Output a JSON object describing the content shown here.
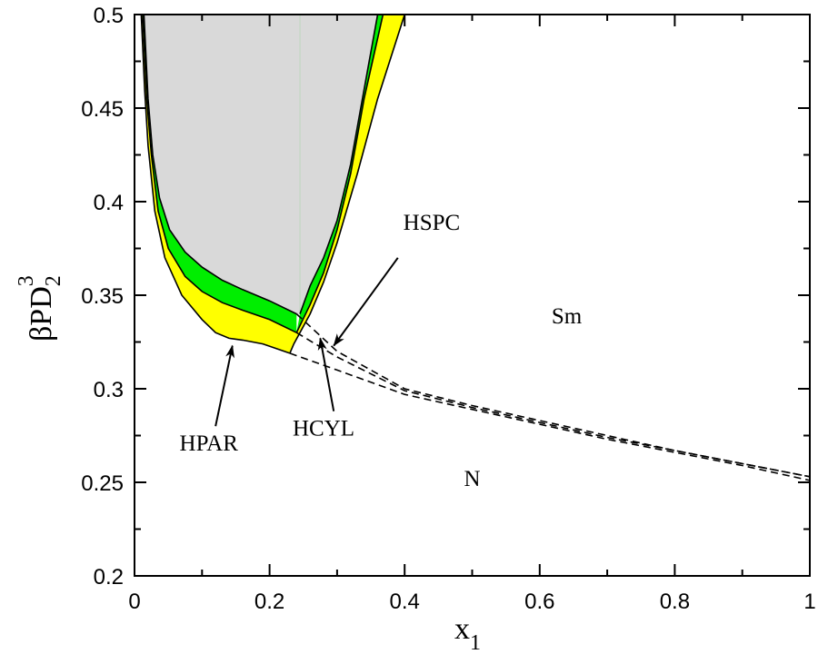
{
  "chart_data": {
    "type": "area",
    "title": "",
    "xlabel": "x",
    "xlabel_sub": "1",
    "ylabel": "βPD",
    "ylabel_sub": "2",
    "ylabel_sup": "3",
    "xlim": [
      0,
      1
    ],
    "ylim": [
      0.2,
      0.5
    ],
    "xticks": [
      0,
      0.2,
      0.4,
      0.6,
      0.8,
      1
    ],
    "xtick_labels": [
      "0",
      "0.2",
      "0.4",
      "0.6",
      "0.8",
      "1"
    ],
    "yticks": [
      0.2,
      0.25,
      0.3,
      0.35,
      0.4,
      0.45,
      0.5
    ],
    "ytick_labels": [
      "0.2",
      "0.25",
      "0.3",
      "0.35",
      "0.4",
      "0.45",
      "0.5"
    ],
    "grid": false,
    "colors": {
      "coexistence": "#d9d9d9",
      "green_band": "#00ee00",
      "yellow_band": "#ffff00",
      "line": "#000000"
    },
    "left_branch": {
      "outer": [
        [
          0.01,
          0.5
        ],
        [
          0.015,
          0.46
        ],
        [
          0.02,
          0.43
        ],
        [
          0.03,
          0.395
        ],
        [
          0.045,
          0.37
        ],
        [
          0.07,
          0.35
        ],
        [
          0.1,
          0.337
        ],
        [
          0.12,
          0.33
        ],
        [
          0.14,
          0.327
        ],
        [
          0.16,
          0.326
        ],
        [
          0.19,
          0.324
        ],
        [
          0.23,
          0.319
        ]
      ],
      "middle": [
        [
          0.012,
          0.5
        ],
        [
          0.018,
          0.455
        ],
        [
          0.025,
          0.425
        ],
        [
          0.035,
          0.395
        ],
        [
          0.05,
          0.375
        ],
        [
          0.075,
          0.36
        ],
        [
          0.1,
          0.352
        ],
        [
          0.13,
          0.346
        ],
        [
          0.16,
          0.342
        ],
        [
          0.2,
          0.337
        ],
        [
          0.24,
          0.33
        ]
      ],
      "inner": [
        [
          0.014,
          0.5
        ],
        [
          0.02,
          0.455
        ],
        [
          0.027,
          0.425
        ],
        [
          0.037,
          0.402
        ],
        [
          0.052,
          0.385
        ],
        [
          0.075,
          0.373
        ],
        [
          0.1,
          0.365
        ],
        [
          0.13,
          0.358
        ],
        [
          0.16,
          0.353
        ],
        [
          0.2,
          0.347
        ],
        [
          0.24,
          0.34
        ]
      ]
    },
    "right_branch": {
      "inner": [
        [
          0.245,
          0.34
        ],
        [
          0.26,
          0.355
        ],
        [
          0.28,
          0.37
        ],
        [
          0.3,
          0.39
        ],
        [
          0.32,
          0.42
        ],
        [
          0.34,
          0.46
        ],
        [
          0.36,
          0.5
        ]
      ],
      "middle": [
        [
          0.24,
          0.33
        ],
        [
          0.26,
          0.345
        ],
        [
          0.28,
          0.362
        ],
        [
          0.3,
          0.385
        ],
        [
          0.32,
          0.415
        ],
        [
          0.34,
          0.455
        ],
        [
          0.368,
          0.5
        ]
      ],
      "outer": [
        [
          0.23,
          0.319
        ],
        [
          0.236,
          0.324
        ],
        [
          0.26,
          0.34
        ],
        [
          0.28,
          0.357
        ],
        [
          0.3,
          0.378
        ],
        [
          0.33,
          0.415
        ],
        [
          0.36,
          0.455
        ],
        [
          0.4,
          0.5
        ]
      ]
    },
    "dashed_lines": [
      {
        "name": "HPAR",
        "points": [
          [
            0.23,
            0.319
          ],
          [
            0.3,
            0.31
          ],
          [
            0.4,
            0.297
          ],
          [
            0.5,
            0.289
          ],
          [
            0.6,
            0.281
          ],
          [
            0.7,
            0.273
          ],
          [
            0.8,
            0.266
          ],
          [
            0.9,
            0.259
          ],
          [
            1.0,
            0.251
          ]
        ]
      },
      {
        "name": "HCYL",
        "points": [
          [
            0.24,
            0.33
          ],
          [
            0.3,
            0.317
          ],
          [
            0.4,
            0.299
          ],
          [
            0.5,
            0.29
          ],
          [
            0.6,
            0.282
          ],
          [
            0.7,
            0.274
          ],
          [
            0.8,
            0.267
          ],
          [
            0.9,
            0.26
          ],
          [
            1.0,
            0.253
          ]
        ]
      },
      {
        "name": "HSPC",
        "points": [
          [
            0.24,
            0.34
          ],
          [
            0.3,
            0.32
          ],
          [
            0.4,
            0.3
          ],
          [
            0.5,
            0.291
          ],
          [
            0.6,
            0.283
          ],
          [
            0.7,
            0.275
          ],
          [
            0.8,
            0.267
          ],
          [
            0.9,
            0.26
          ],
          [
            1.0,
            0.253
          ]
        ]
      }
    ],
    "annotations": [
      {
        "text": "HSPC",
        "x": 0.44,
        "y": 0.385,
        "arrow_from": [
          0.39,
          0.37
        ],
        "arrow_to": [
          0.295,
          0.323
        ]
      },
      {
        "text": "HCYL",
        "x": 0.28,
        "y": 0.275,
        "arrow_from": [
          0.295,
          0.288
        ],
        "arrow_to": [
          0.275,
          0.327
        ]
      },
      {
        "text": "HPAR",
        "x": 0.11,
        "y": 0.267,
        "arrow_from": [
          0.12,
          0.28
        ],
        "arrow_to": [
          0.145,
          0.323
        ]
      },
      {
        "text": "Sm",
        "x": 0.64,
        "y": 0.335
      },
      {
        "text": "N",
        "x": 0.5,
        "y": 0.248
      }
    ]
  }
}
